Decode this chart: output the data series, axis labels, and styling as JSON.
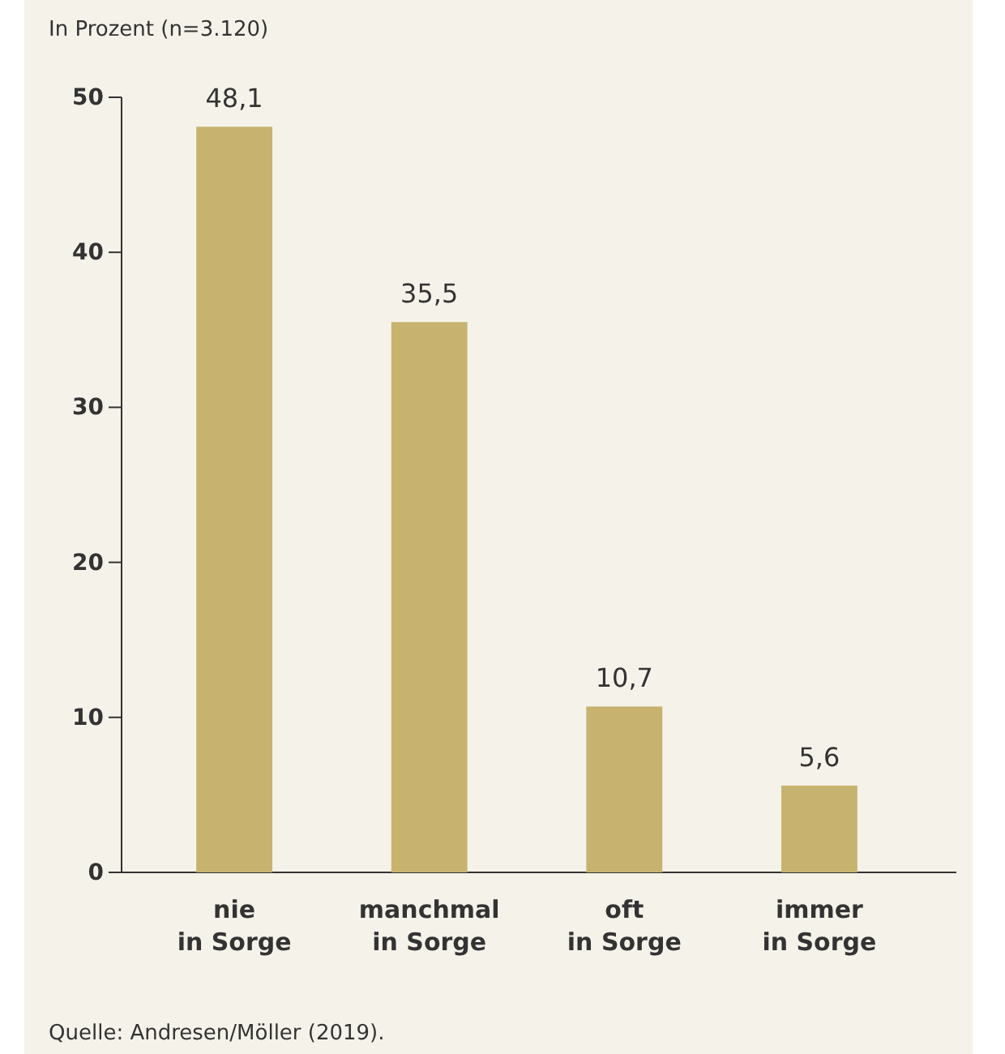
{
  "chart_data": {
    "type": "bar",
    "ylabel": "In Prozent (n=3.120)",
    "categories": [
      "nie\nin Sorge",
      "manchmal\nin Sorge",
      "oft\nin Sorge",
      "immer\nin Sorge"
    ],
    "values": [
      48.1,
      35.5,
      10.7,
      5.6
    ],
    "value_labels": [
      "48,1",
      "35,5",
      "10,7",
      "5,6"
    ],
    "color": "#c7b36f",
    "ylim": [
      0,
      50
    ],
    "yticks": [
      0,
      10,
      20,
      30,
      40,
      50
    ],
    "grid": false,
    "annotations": [
      "Quelle: Andresen/Möller (2019)."
    ]
  }
}
